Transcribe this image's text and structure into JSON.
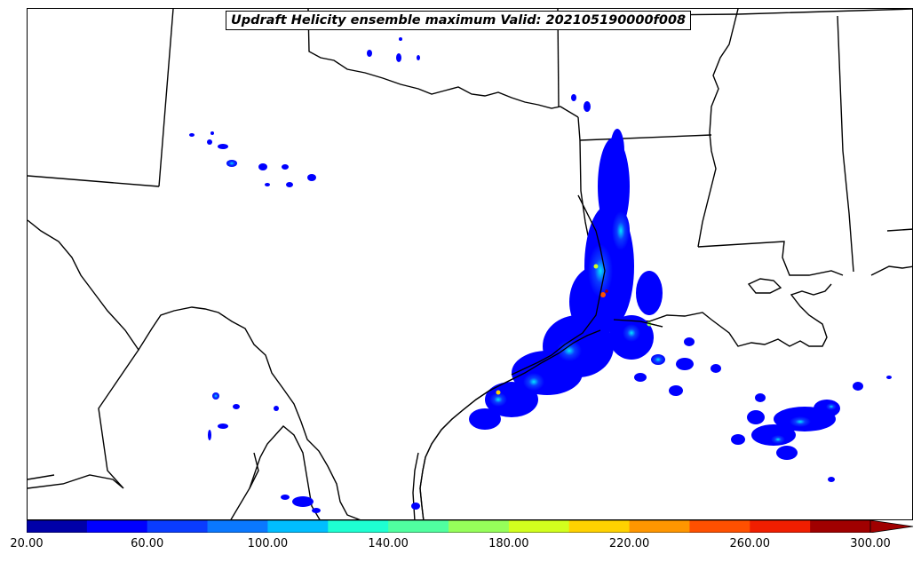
{
  "title": "Updraft Helicity ensemble maximum Valid: 202105190000f008",
  "colorbar": {
    "tick_labels": [
      "20.00",
      "60.00",
      "100.00",
      "140.00",
      "180.00",
      "220.00",
      "260.00",
      "300.00"
    ],
    "colors": [
      "#0000a8",
      "#0000ff",
      "#0a3cff",
      "#0a78ff",
      "#00beff",
      "#1effd2",
      "#50ffa0",
      "#96ff5a",
      "#d2ff1e",
      "#ffd200",
      "#ff9600",
      "#ff5000",
      "#f01e00",
      "#a00000"
    ],
    "extend": "max"
  }
}
